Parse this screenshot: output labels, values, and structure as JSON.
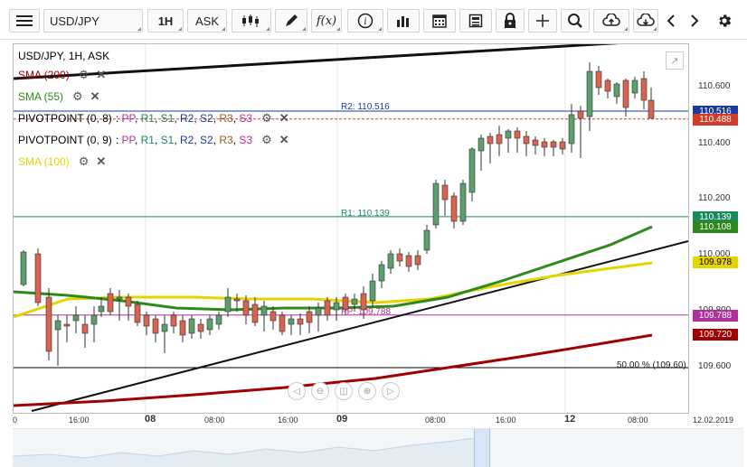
{
  "toolbar": {
    "menu_icon": "hamburger-icon",
    "symbol": "USD/JPY",
    "timeframe": "1H",
    "price_type": "ASK",
    "icons": [
      "candlestick-icon",
      "pencil-icon",
      "function-icon",
      "info-icon",
      "bar-chart-icon",
      "calendar-icon",
      "news-icon",
      "lock-icon",
      "crosshair-icon",
      "zoom-icon",
      "cloud-upload-icon",
      "cloud-download-icon",
      "chevron-left-icon",
      "chevron-right-icon",
      "gear-icon"
    ],
    "fx_label": "f(x)"
  },
  "chart": {
    "title": "USD/JPY, 1H, ASK",
    "legend": [
      {
        "label": "SMA (200)",
        "color": "#a00000"
      },
      {
        "label": "SMA (55)",
        "color": "#2c8a1a"
      },
      {
        "label": "PIVOTPOINT (0, 8)",
        "color": "#000000",
        "suffix": true
      },
      {
        "label": "PIVOTPOINT (0, 9)",
        "color": "#000000",
        "suffix": true
      },
      {
        "label": "SMA (100)",
        "color": "#e6d400"
      }
    ],
    "pivot_suffix": [
      {
        "text": ": ",
        "color": "#000"
      },
      {
        "text": "PP",
        "color": "#b0309a"
      },
      {
        "text": ", ",
        "color": "#000"
      },
      {
        "text": "R1",
        "color": "#1a8a5a"
      },
      {
        "text": ", ",
        "color": "#000"
      },
      {
        "text": "S1",
        "color": "#1a8a5a"
      },
      {
        "text": ", ",
        "color": "#000"
      },
      {
        "text": "R2",
        "color": "#1a3aa0"
      },
      {
        "text": ", ",
        "color": "#000"
      },
      {
        "text": "S2",
        "color": "#1a3aa0"
      },
      {
        "text": ", ",
        "color": "#000"
      },
      {
        "text": "R3",
        "color": "#9a5a1a"
      },
      {
        "text": ", ",
        "color": "#000"
      },
      {
        "text": "S3",
        "color": "#b0309a"
      }
    ],
    "annotations": {
      "r2": "R2: 110.516",
      "r1": "R1: 110.139",
      "pp": "PP: 109.788",
      "fib": "50.00 % (109.60)"
    },
    "y_ticks": [
      "110.600",
      "110.400",
      "110.200",
      "110.000",
      "109.800",
      "109.600"
    ],
    "price_tags": [
      {
        "value": "110.516",
        "bg": "#1a3aa0"
      },
      {
        "value": "110.488",
        "bg": "#d23a2a"
      },
      {
        "value": "110.139",
        "bg": "#1a8a5a"
      },
      {
        "value": "110.108",
        "bg": "#2c8a1a"
      },
      {
        "value": "109.978",
        "bg": "#e6d400",
        "fg": "#000"
      },
      {
        "value": "109.788",
        "bg": "#b0309a"
      },
      {
        "value": "109.720",
        "bg": "#a00000"
      }
    ],
    "x_labels": [
      {
        "text": "0",
        "bold": false
      },
      {
        "text": "16:00",
        "bold": false
      },
      {
        "text": "08",
        "bold": true
      },
      {
        "text": "08:00",
        "bold": false
      },
      {
        "text": "16:00",
        "bold": false
      },
      {
        "text": "09",
        "bold": true
      },
      {
        "text": "08:00",
        "bold": false
      },
      {
        "text": "16:00",
        "bold": false
      },
      {
        "text": "12",
        "bold": true
      },
      {
        "text": "08:00",
        "bold": false
      },
      {
        "text": "12.02.2019",
        "bold": false
      }
    ],
    "zoom_controls": [
      "scroll-left-icon",
      "zoom-out-icon",
      "fit-icon",
      "zoom-in-icon",
      "scroll-right-icon"
    ],
    "expand_icon": "expand-icon"
  }
}
